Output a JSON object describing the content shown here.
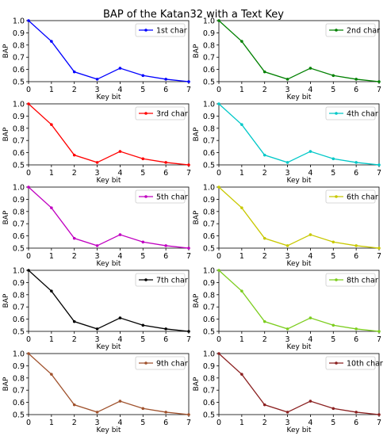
{
  "figure": {
    "title": "BAP of the Katan32 with a Text Key"
  },
  "chart_data": [
    {
      "type": "line",
      "xlabel": "Key bit",
      "ylabel": "BAP",
      "x": [
        0,
        1,
        2,
        3,
        4,
        5,
        6,
        7
      ],
      "xticks": [
        "0",
        "1",
        "2",
        "3",
        "4",
        "5",
        "6",
        "7"
      ],
      "ylim": [
        0.5,
        1.0
      ],
      "yticks": [
        "0.5",
        "0.6",
        "0.7",
        "0.8",
        "0.9",
        "1.0"
      ],
      "legend_position": "top-right",
      "series": [
        {
          "name": "1st char",
          "color": "#0000ff",
          "values": [
            1.0,
            0.83,
            0.58,
            0.52,
            0.61,
            0.55,
            0.52,
            0.5
          ]
        }
      ]
    },
    {
      "type": "line",
      "xlabel": "Key bit",
      "ylabel": "BAP",
      "x": [
        0,
        1,
        2,
        3,
        4,
        5,
        6,
        7
      ],
      "xticks": [
        "0",
        "1",
        "2",
        "3",
        "4",
        "5",
        "6",
        "7"
      ],
      "ylim": [
        0.5,
        1.0
      ],
      "yticks": [
        "0.5",
        "0.6",
        "0.7",
        "0.8",
        "0.9",
        "1.0"
      ],
      "legend_position": "top-right",
      "series": [
        {
          "name": "2nd char",
          "color": "#008000",
          "values": [
            1.0,
            0.83,
            0.58,
            0.52,
            0.61,
            0.55,
            0.52,
            0.5
          ]
        }
      ]
    },
    {
      "type": "line",
      "xlabel": "Key bit",
      "ylabel": "BAP",
      "x": [
        0,
        1,
        2,
        3,
        4,
        5,
        6,
        7
      ],
      "xticks": [
        "0",
        "1",
        "2",
        "3",
        "4",
        "5",
        "6",
        "7"
      ],
      "ylim": [
        0.5,
        1.0
      ],
      "yticks": [
        "0.5",
        "0.6",
        "0.7",
        "0.8",
        "0.9",
        "1.0"
      ],
      "legend_position": "top-right",
      "series": [
        {
          "name": "3rd char",
          "color": "#ff0000",
          "values": [
            1.0,
            0.83,
            0.58,
            0.52,
            0.61,
            0.55,
            0.52,
            0.5
          ]
        }
      ]
    },
    {
      "type": "line",
      "xlabel": "Key bit",
      "ylabel": "BAP",
      "x": [
        0,
        1,
        2,
        3,
        4,
        5,
        6,
        7
      ],
      "xticks": [
        "0",
        "1",
        "2",
        "3",
        "4",
        "5",
        "6",
        "7"
      ],
      "ylim": [
        0.5,
        1.0
      ],
      "yticks": [
        "0.5",
        "0.6",
        "0.7",
        "0.8",
        "0.9",
        "1.0"
      ],
      "legend_position": "top-right",
      "series": [
        {
          "name": "4th char",
          "color": "#00c8c8",
          "values": [
            1.0,
            0.83,
            0.58,
            0.52,
            0.61,
            0.55,
            0.52,
            0.5
          ]
        }
      ]
    },
    {
      "type": "line",
      "xlabel": "Key bit",
      "ylabel": "BAP",
      "x": [
        0,
        1,
        2,
        3,
        4,
        5,
        6,
        7
      ],
      "xticks": [
        "0",
        "1",
        "2",
        "3",
        "4",
        "5",
        "6",
        "7"
      ],
      "ylim": [
        0.5,
        1.0
      ],
      "yticks": [
        "0.5",
        "0.6",
        "0.7",
        "0.8",
        "0.9",
        "1.0"
      ],
      "legend_position": "top-right",
      "series": [
        {
          "name": "5th char",
          "color": "#c000c0",
          "values": [
            1.0,
            0.83,
            0.58,
            0.52,
            0.61,
            0.55,
            0.52,
            0.5
          ]
        }
      ]
    },
    {
      "type": "line",
      "xlabel": "Key bit",
      "ylabel": "BAP",
      "x": [
        0,
        1,
        2,
        3,
        4,
        5,
        6,
        7
      ],
      "xticks": [
        "0",
        "1",
        "2",
        "3",
        "4",
        "5",
        "6",
        "7"
      ],
      "ylim": [
        0.5,
        1.0
      ],
      "yticks": [
        "0.5",
        "0.6",
        "0.7",
        "0.8",
        "0.9",
        "1.0"
      ],
      "legend_position": "top-right",
      "series": [
        {
          "name": "6th char",
          "color": "#c8c800",
          "values": [
            1.0,
            0.83,
            0.58,
            0.52,
            0.61,
            0.55,
            0.52,
            0.5
          ]
        }
      ]
    },
    {
      "type": "line",
      "xlabel": "Key bit",
      "ylabel": "BAP",
      "x": [
        0,
        1,
        2,
        3,
        4,
        5,
        6,
        7
      ],
      "xticks": [
        "0",
        "1",
        "2",
        "3",
        "4",
        "5",
        "6",
        "7"
      ],
      "ylim": [
        0.5,
        1.0
      ],
      "yticks": [
        "0.5",
        "0.6",
        "0.7",
        "0.8",
        "0.9",
        "1.0"
      ],
      "legend_position": "top-right",
      "series": [
        {
          "name": "7th char",
          "color": "#000000",
          "values": [
            1.0,
            0.83,
            0.58,
            0.52,
            0.61,
            0.55,
            0.52,
            0.5
          ]
        }
      ]
    },
    {
      "type": "line",
      "xlabel": "Key bit",
      "ylabel": "BAP",
      "x": [
        0,
        1,
        2,
        3,
        4,
        5,
        6,
        7
      ],
      "xticks": [
        "0",
        "1",
        "2",
        "3",
        "4",
        "5",
        "6",
        "7"
      ],
      "ylim": [
        0.5,
        1.0
      ],
      "yticks": [
        "0.5",
        "0.6",
        "0.7",
        "0.8",
        "0.9",
        "1.0"
      ],
      "legend_position": "top-right",
      "series": [
        {
          "name": "8th char",
          "color": "#7ccd1e",
          "values": [
            1.0,
            0.83,
            0.58,
            0.52,
            0.61,
            0.55,
            0.52,
            0.5
          ]
        }
      ]
    },
    {
      "type": "line",
      "xlabel": "Key bit",
      "ylabel": "BAP",
      "x": [
        0,
        1,
        2,
        3,
        4,
        5,
        6,
        7
      ],
      "xticks": [
        "0",
        "1",
        "2",
        "3",
        "4",
        "5",
        "6",
        "7"
      ],
      "ylim": [
        0.5,
        1.0
      ],
      "yticks": [
        "0.5",
        "0.6",
        "0.7",
        "0.8",
        "0.9",
        "1.0"
      ],
      "legend_position": "top-right",
      "series": [
        {
          "name": "9th char",
          "color": "#a0522d",
          "values": [
            1.0,
            0.83,
            0.58,
            0.52,
            0.61,
            0.55,
            0.52,
            0.5
          ]
        }
      ]
    },
    {
      "type": "line",
      "xlabel": "Key bit",
      "ylabel": "BAP",
      "x": [
        0,
        1,
        2,
        3,
        4,
        5,
        6,
        7
      ],
      "xticks": [
        "0",
        "1",
        "2",
        "3",
        "4",
        "5",
        "6",
        "7"
      ],
      "ylim": [
        0.5,
        1.0
      ],
      "yticks": [
        "0.5",
        "0.6",
        "0.7",
        "0.8",
        "0.9",
        "1.0"
      ],
      "legend_position": "top-right",
      "series": [
        {
          "name": "10th char",
          "color": "#8b2020",
          "values": [
            1.0,
            0.83,
            0.58,
            0.52,
            0.61,
            0.55,
            0.52,
            0.5
          ]
        }
      ]
    }
  ]
}
